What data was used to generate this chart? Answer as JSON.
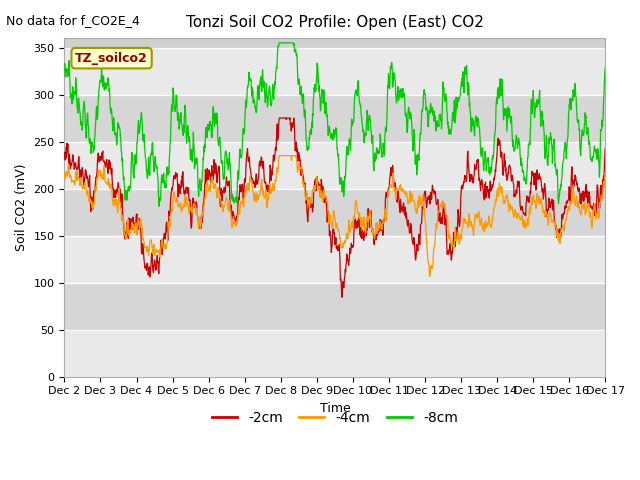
{
  "title": "Tonzi Soil CO2 Profile: Open (East) CO2",
  "top_left_text": "No data for f_CO2E_4",
  "ylabel": "Soil CO2 (mV)",
  "xlabel": "Time",
  "legend_label": "TZ_soilco2",
  "series_labels": [
    "-2cm",
    "-4cm",
    "-8cm"
  ],
  "series_colors": [
    "#cc0000",
    "#ff9900",
    "#00cc00"
  ],
  "ylim": [
    0,
    360
  ],
  "yticks": [
    0,
    50,
    100,
    150,
    200,
    250,
    300,
    350
  ],
  "xticklabels": [
    "Dec 2",
    "Dec 3",
    "Dec 4",
    "Dec 5",
    "Dec 6",
    "Dec 7",
    "Dec 8",
    "Dec 9",
    "Dec 10",
    "Dec 11",
    "Dec 12",
    "Dec 13",
    "Dec 14",
    "Dec 15",
    "Dec 16",
    "Dec 17"
  ],
  "gray_band_light": "#d8d8d8",
  "gray_band_dark": "#c8c8c8",
  "background_color": "#ffffff",
  "plot_bg_color": "#d0d0d0",
  "figsize": [
    6.4,
    4.8
  ],
  "dpi": 100,
  "title_fontsize": 11,
  "axis_fontsize": 9,
  "tick_fontsize": 8,
  "legend_fontsize": 10,
  "box_facecolor": "#ffffcc",
  "box_edgecolor": "#999900",
  "box_textcolor": "#990000"
}
